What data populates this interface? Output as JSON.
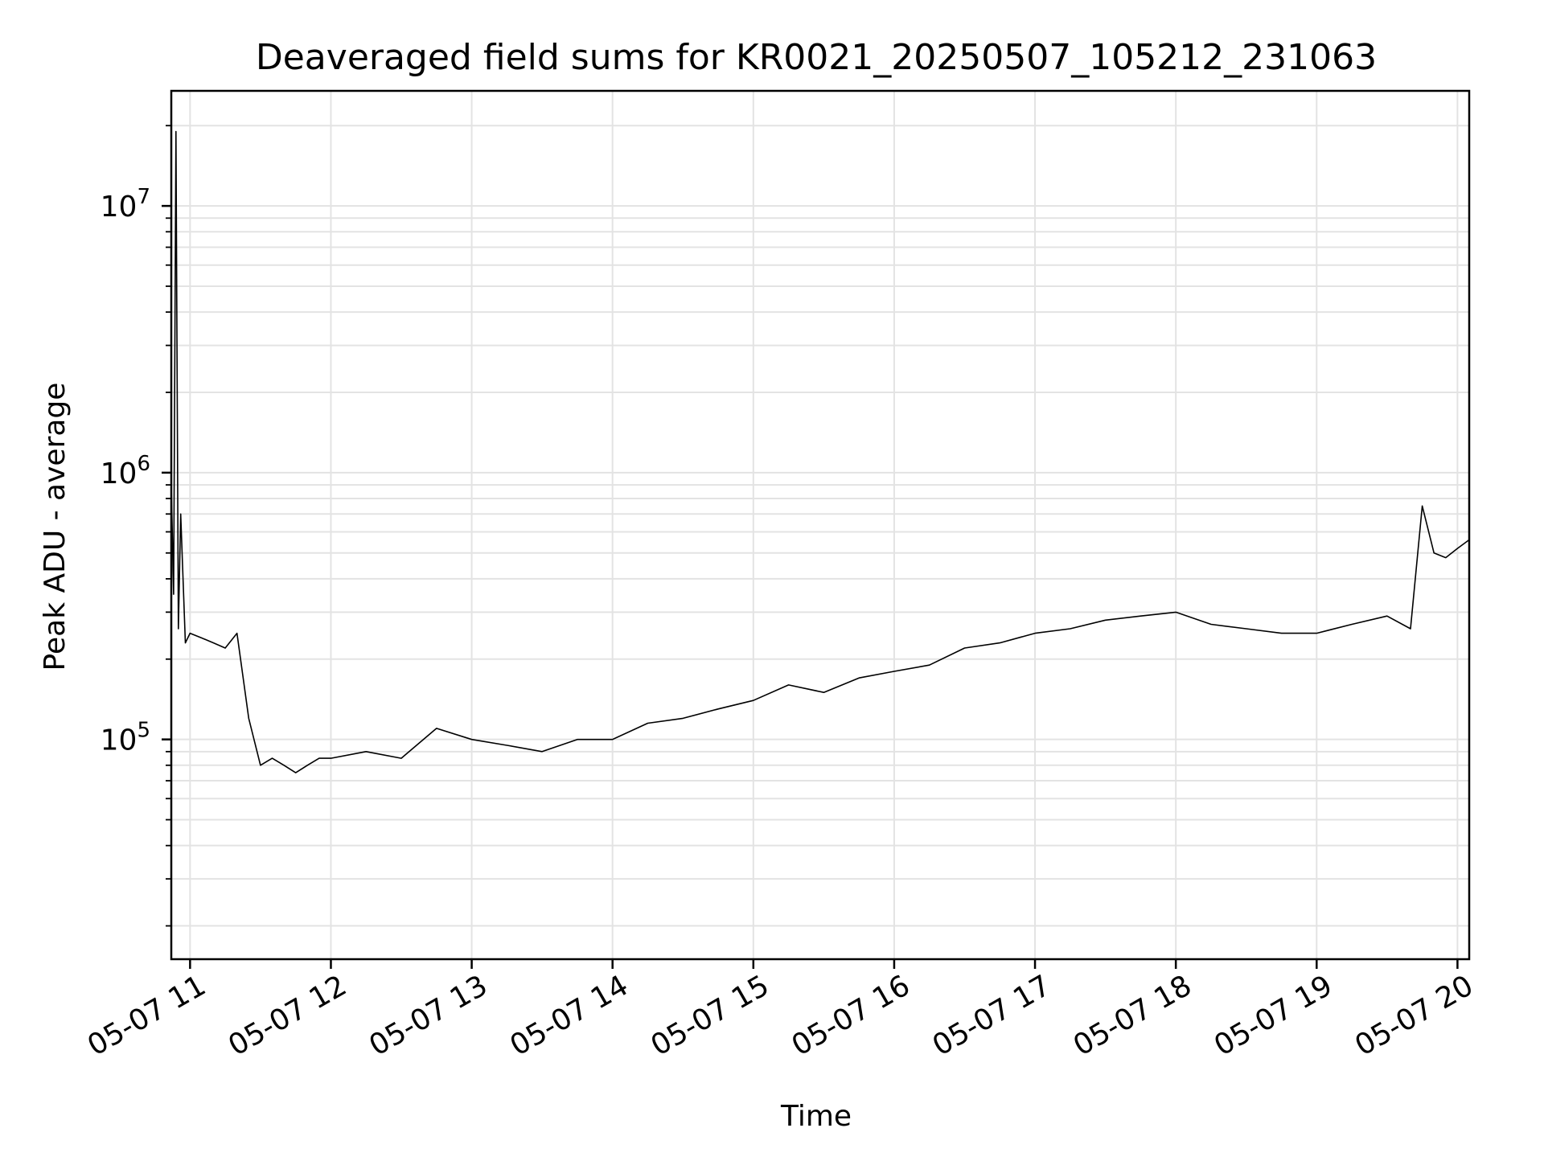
{
  "chart_data": {
    "type": "line",
    "title": "Deaveraged field sums for KR0021_20250507_105212_231063",
    "xlabel": "Time",
    "ylabel": "Peak ADU - average",
    "x_type": "datetime",
    "y_scale": "log",
    "xlim": [
      "2025-05-07T10:52",
      "2025-05-07T20:05"
    ],
    "ylim": [
      15000,
      27000000
    ],
    "grid": true,
    "x_ticks": [
      "2025-05-07T11:00",
      "2025-05-07T12:00",
      "2025-05-07T13:00",
      "2025-05-07T14:00",
      "2025-05-07T15:00",
      "2025-05-07T16:00",
      "2025-05-07T17:00",
      "2025-05-07T18:00",
      "2025-05-07T19:00",
      "2025-05-07T20:00"
    ],
    "x_tick_labels": [
      "05-07 11",
      "05-07 12",
      "05-07 13",
      "05-07 14",
      "05-07 15",
      "05-07 16",
      "05-07 17",
      "05-07 18",
      "05-07 19",
      "05-07 20"
    ],
    "y_ticks": [
      100000,
      1000000,
      10000000
    ],
    "y_tick_labels": [
      {
        "base": "10",
        "exp": "5"
      },
      {
        "base": "10",
        "exp": "6"
      },
      {
        "base": "10",
        "exp": "7"
      }
    ],
    "series": [
      {
        "color": "#000000",
        "x": [
          "2025-05-07T10:52",
          "2025-05-07T10:53",
          "2025-05-07T10:54",
          "2025-05-07T10:55",
          "2025-05-07T10:56",
          "2025-05-07T10:58",
          "2025-05-07T11:00",
          "2025-05-07T11:05",
          "2025-05-07T11:10",
          "2025-05-07T11:15",
          "2025-05-07T11:20",
          "2025-05-07T11:25",
          "2025-05-07T11:30",
          "2025-05-07T11:35",
          "2025-05-07T11:40",
          "2025-05-07T11:45",
          "2025-05-07T11:50",
          "2025-05-07T11:55",
          "2025-05-07T12:00",
          "2025-05-07T12:15",
          "2025-05-07T12:30",
          "2025-05-07T12:45",
          "2025-05-07T13:00",
          "2025-05-07T13:15",
          "2025-05-07T13:30",
          "2025-05-07T13:45",
          "2025-05-07T14:00",
          "2025-05-07T14:15",
          "2025-05-07T14:30",
          "2025-05-07T14:45",
          "2025-05-07T15:00",
          "2025-05-07T15:15",
          "2025-05-07T15:30",
          "2025-05-07T15:45",
          "2025-05-07T16:00",
          "2025-05-07T16:15",
          "2025-05-07T16:30",
          "2025-05-07T16:45",
          "2025-05-07T17:00",
          "2025-05-07T17:15",
          "2025-05-07T17:30",
          "2025-05-07T17:45",
          "2025-05-07T18:00",
          "2025-05-07T18:15",
          "2025-05-07T18:30",
          "2025-05-07T18:45",
          "2025-05-07T19:00",
          "2025-05-07T19:15",
          "2025-05-07T19:30",
          "2025-05-07T19:40",
          "2025-05-07T19:45",
          "2025-05-07T19:50",
          "2025-05-07T19:55",
          "2025-05-07T20:00",
          "2025-05-07T20:05"
        ],
        "y": [
          900000,
          350000,
          19000000,
          260000,
          700000,
          230000,
          250000,
          240000,
          230000,
          220000,
          250000,
          120000,
          80000,
          85000,
          80000,
          75000,
          80000,
          85000,
          85000,
          90000,
          85000,
          110000,
          100000,
          95000,
          90000,
          100000,
          100000,
          115000,
          120000,
          130000,
          140000,
          160000,
          150000,
          170000,
          180000,
          190000,
          220000,
          230000,
          250000,
          260000,
          280000,
          290000,
          300000,
          270000,
          260000,
          250000,
          250000,
          270000,
          290000,
          260000,
          750000,
          500000,
          480000,
          520000,
          560000
        ]
      }
    ]
  }
}
